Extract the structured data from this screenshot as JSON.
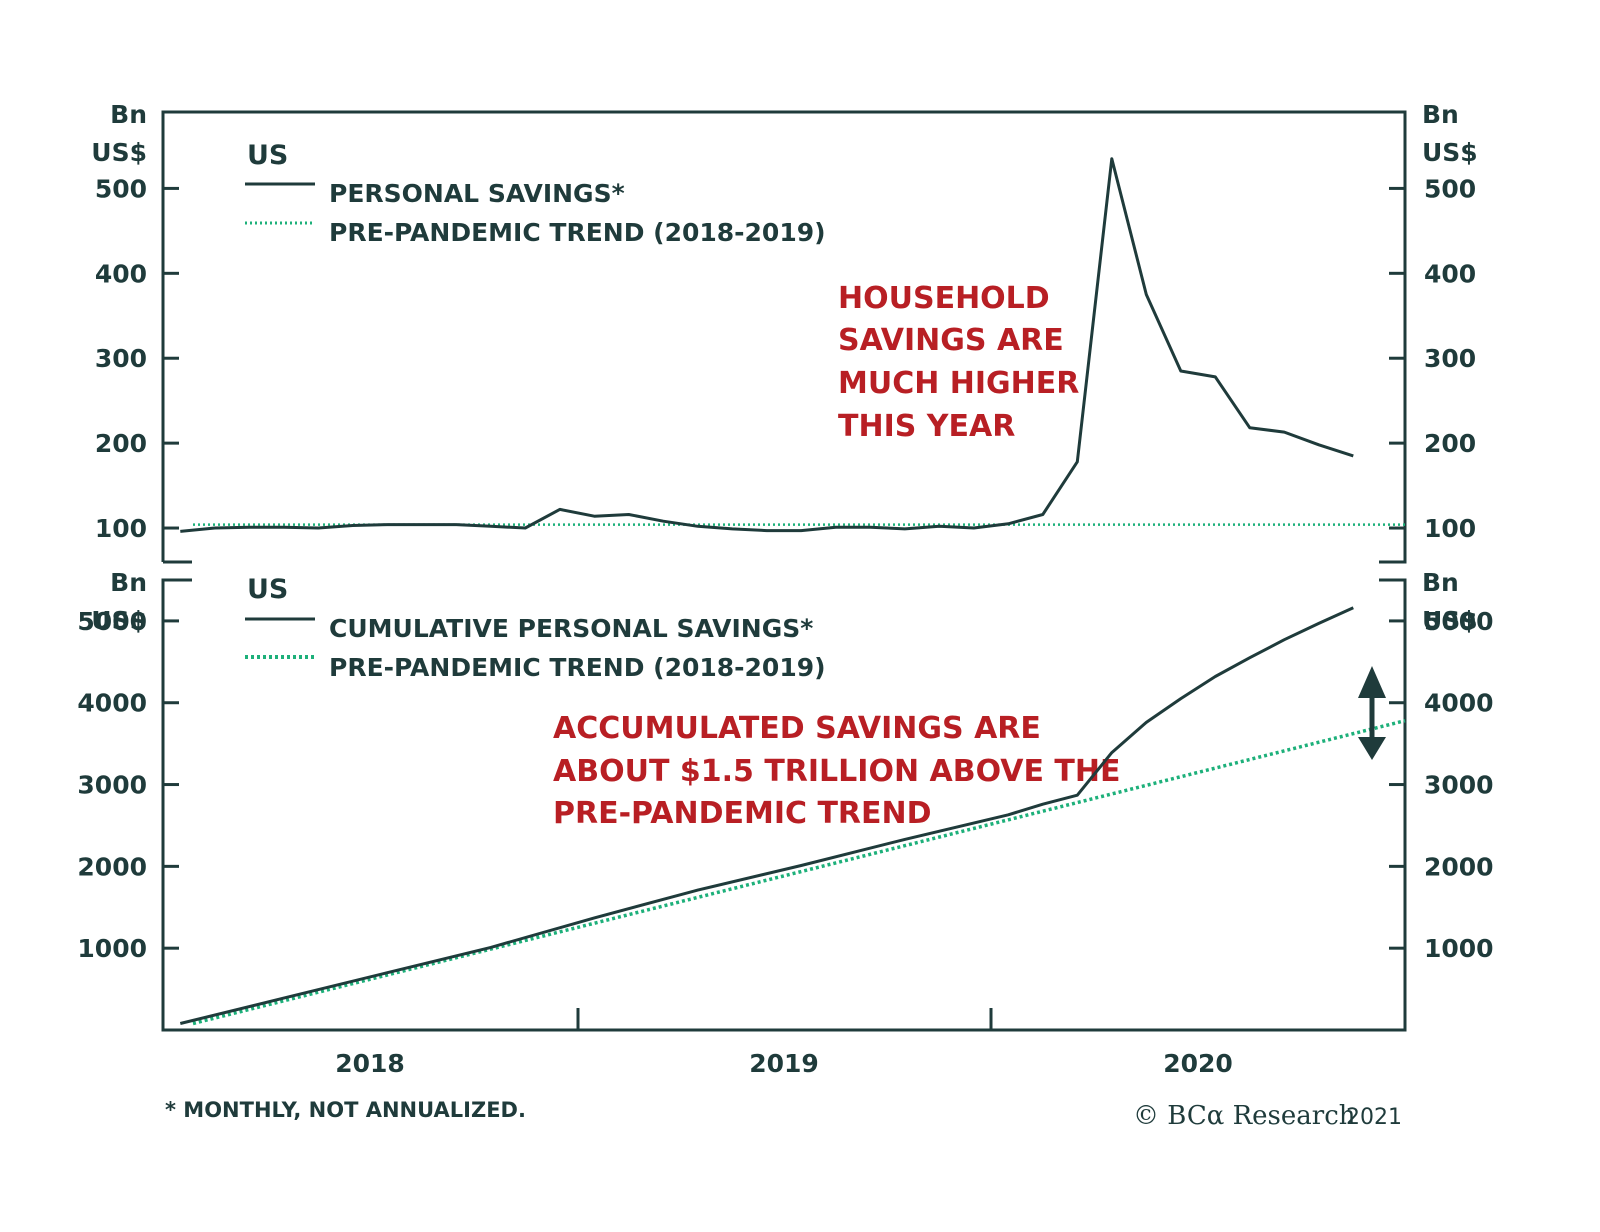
{
  "colors": {
    "axis": "#1f3b3b",
    "series": "#1f3b3b",
    "trend": "#1db07a",
    "annotation": "#b81f24"
  },
  "footnote": "* MONTHLY, NOT ANNUALIZED.",
  "credit": {
    "logo": "© BCα Research",
    "year": "2021"
  },
  "chart_data": [
    {
      "type": "line",
      "panel_label": "US",
      "unit_label": [
        "Bn",
        "US$"
      ],
      "ylim": [
        60,
        590
      ],
      "yticks": [
        100,
        200,
        300,
        400,
        500
      ],
      "x_axis": {
        "start": "2018-01",
        "end": "2020-12",
        "tick_labels": [
          "2018",
          "2019",
          "2020"
        ]
      },
      "legend": [
        {
          "label": "PERSONAL SAVINGS*",
          "style": "solid"
        },
        {
          "label": "PRE-PANDEMIC TREND (2018-2019)",
          "style": "dotted"
        }
      ],
      "annotation": [
        "HOUSEHOLD",
        "SAVINGS ARE",
        "MUCH HIGHER",
        "THIS YEAR"
      ],
      "series": [
        {
          "name": "PERSONAL SAVINGS*",
          "x": [
            "2018-01",
            "2018-02",
            "2018-03",
            "2018-04",
            "2018-05",
            "2018-06",
            "2018-07",
            "2018-08",
            "2018-09",
            "2018-10",
            "2018-11",
            "2018-12",
            "2019-01",
            "2019-02",
            "2019-03",
            "2019-04",
            "2019-05",
            "2019-06",
            "2019-07",
            "2019-08",
            "2019-09",
            "2019-10",
            "2019-11",
            "2019-12",
            "2020-01",
            "2020-02",
            "2020-03",
            "2020-04",
            "2020-05",
            "2020-06",
            "2020-07",
            "2020-08",
            "2020-09",
            "2020-10",
            "2020-11",
            "2020-12"
          ],
          "values": [
            96,
            100,
            101,
            101,
            100,
            103,
            104,
            104,
            104,
            102,
            100,
            122,
            114,
            116,
            108,
            102,
            99,
            97,
            97,
            101,
            101,
            99,
            102,
            100,
            105,
            116,
            178,
            535,
            375,
            285,
            278,
            218,
            213,
            198,
            185,
            null
          ]
        },
        {
          "name": "PRE-PANDEMIC TREND (2018-2019)",
          "x": [
            "2018-01",
            "2020-12"
          ],
          "values": [
            104,
            104
          ]
        }
      ]
    },
    {
      "type": "line",
      "panel_label": "US",
      "unit_label": [
        "Bn",
        "US$"
      ],
      "ylim": [
        0,
        5500
      ],
      "yticks": [
        1000,
        2000,
        3000,
        4000,
        5000
      ],
      "x_axis": {
        "start": "2018-01",
        "end": "2020-12",
        "tick_labels": [
          "2018",
          "2019",
          "2020"
        ]
      },
      "legend": [
        {
          "label": "CUMULATIVE PERSONAL SAVINGS*",
          "style": "solid"
        },
        {
          "label": "PRE-PANDEMIC TREND (2018-2019)",
          "style": "dotted"
        }
      ],
      "annotation": [
        "ACCUMULATED SAVINGS ARE",
        "ABOUT $1.5 TRILLION ABOVE THE",
        "PRE-PANDEMIC TREND"
      ],
      "series": [
        {
          "name": "CUMULATIVE PERSONAL SAVINGS*",
          "x": [
            "2018-01",
            "2018-04",
            "2018-07",
            "2018-10",
            "2019-01",
            "2019-04",
            "2019-07",
            "2019-10",
            "2020-01",
            "2020-02",
            "2020-03",
            "2020-04",
            "2020-05",
            "2020-06",
            "2020-07",
            "2020-08",
            "2020-09",
            "2020-10",
            "2020-11"
          ],
          "values": [
            80,
            390,
            700,
            1010,
            1370,
            1710,
            2010,
            2330,
            2630,
            2760,
            2870,
            3390,
            3760,
            4050,
            4320,
            4550,
            4770,
            4970,
            5160
          ]
        },
        {
          "name": "PRE-PANDEMIC TREND (2018-2019)",
          "x": [
            "2018-01",
            "2020-12"
          ],
          "values": [
            80,
            3780
          ]
        }
      ]
    }
  ]
}
